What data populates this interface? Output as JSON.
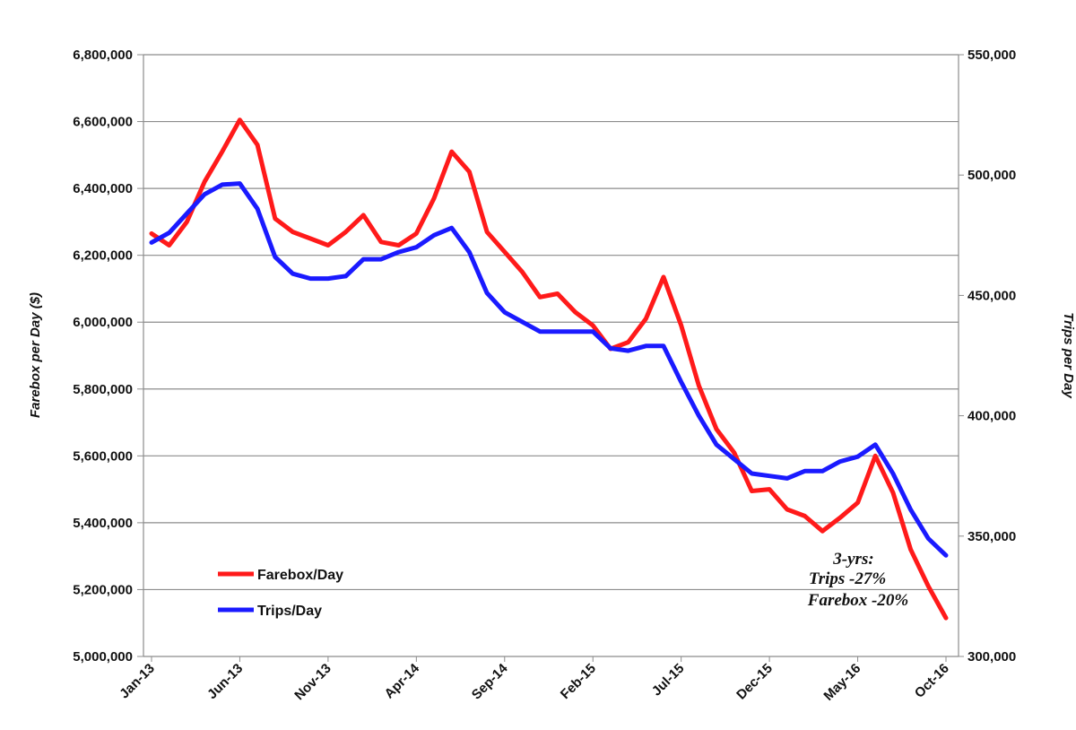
{
  "chart_data": {
    "type": "line",
    "title": "",
    "xlabel": "",
    "ylabel_left": "Farebox per Day ($)",
    "ylabel_right": "Trips per Day",
    "ylim_left": [
      5000000,
      6800000
    ],
    "ylim_right": [
      300000,
      550000
    ],
    "left_ticks": [
      {
        "value": 5000000,
        "label": "5,000,000"
      },
      {
        "value": 5200000,
        "label": "5,200,000"
      },
      {
        "value": 5400000,
        "label": "5,400,000"
      },
      {
        "value": 5600000,
        "label": "5,600,000"
      },
      {
        "value": 5800000,
        "label": "5,800,000"
      },
      {
        "value": 6000000,
        "label": "6,000,000"
      },
      {
        "value": 6200000,
        "label": "6,200,000"
      },
      {
        "value": 6400000,
        "label": "6,400,000"
      },
      {
        "value": 6600000,
        "label": "6,600,000"
      },
      {
        "value": 6800000,
        "label": "6,800,000"
      }
    ],
    "right_ticks": [
      {
        "value": 300000,
        "label": "300,000"
      },
      {
        "value": 350000,
        "label": "350,000"
      },
      {
        "value": 400000,
        "label": "400,000"
      },
      {
        "value": 450000,
        "label": "450,000"
      },
      {
        "value": 500000,
        "label": "500,000"
      },
      {
        "value": 550000,
        "label": "550,000"
      }
    ],
    "x_tick_labels": [
      {
        "index": 0,
        "label": "Jan-13"
      },
      {
        "index": 5,
        "label": "Jun-13"
      },
      {
        "index": 10,
        "label": "Nov-13"
      },
      {
        "index": 15,
        "label": "Apr-14"
      },
      {
        "index": 20,
        "label": "Sep-14"
      },
      {
        "index": 25,
        "label": "Feb-15"
      },
      {
        "index": 30,
        "label": "Jul-15"
      },
      {
        "index": 35,
        "label": "Dec-15"
      },
      {
        "index": 40,
        "label": "May-16"
      },
      {
        "index": 45,
        "label": "Oct-16"
      }
    ],
    "grid": "horizontal",
    "legend_position": "bottom-left",
    "series": [
      {
        "name": "Farebox/Day",
        "axis": "left",
        "color": "#ff1a1a",
        "values": [
          6265000,
          6230000,
          6300000,
          6420000,
          6510000,
          6605000,
          6530000,
          6310000,
          6270000,
          6250000,
          6230000,
          6270000,
          6320000,
          6240000,
          6230000,
          6265000,
          6370000,
          6510000,
          6450000,
          6270000,
          6210000,
          6150000,
          6075000,
          6085000,
          6030000,
          5990000,
          5920000,
          5940000,
          6010000,
          6135000,
          5990000,
          5810000,
          5680000,
          5610000,
          5495000,
          5500000,
          5440000,
          5420000,
          5375000,
          5415000,
          5460000,
          5600000,
          5490000,
          5320000,
          5210000,
          5115000
        ]
      },
      {
        "name": "Trips/Day",
        "axis": "right",
        "color": "#1a1aff",
        "values": [
          472000,
          476000,
          484000,
          492000,
          496000,
          496500,
          486000,
          466000,
          459000,
          457000,
          457000,
          458000,
          465000,
          465000,
          468000,
          470000,
          475000,
          478000,
          468000,
          451000,
          443000,
          439000,
          435000,
          435000,
          435000,
          435000,
          428000,
          427000,
          429000,
          429000,
          414000,
          400000,
          388000,
          382000,
          376000,
          375000,
          374000,
          377000,
          377000,
          381000,
          383000,
          388000,
          376000,
          361000,
          349000,
          342000
        ]
      }
    ],
    "annotation": [
      "3-yrs:",
      "Trips -27%",
      "Farebox -20%"
    ]
  }
}
